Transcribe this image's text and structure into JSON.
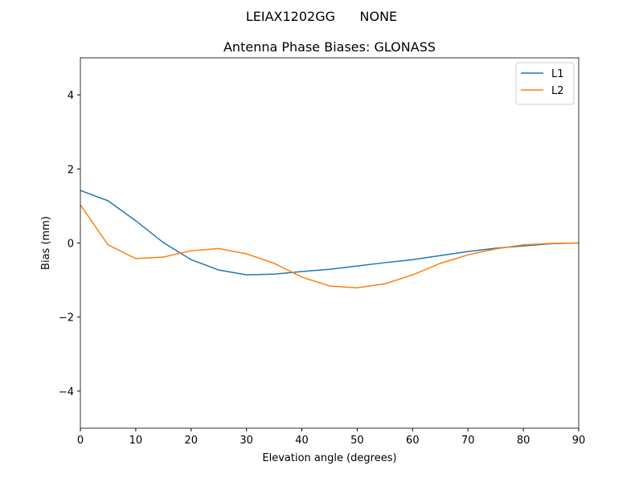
{
  "chart_data": {
    "type": "line",
    "suptitle": "LEIAX1202GG      NONE",
    "title": "Antenna Phase Biases: GLONASS",
    "xlabel": "Elevation angle (degrees)",
    "ylabel": "Bias (mm)",
    "x": [
      0,
      5,
      10,
      15,
      20,
      25,
      30,
      35,
      40,
      45,
      50,
      55,
      60,
      65,
      70,
      75,
      80,
      85,
      90
    ],
    "series": [
      {
        "name": "L1",
        "color": "#1f77b4",
        "values": [
          1.42,
          1.14,
          0.6,
          0.01,
          -0.45,
          -0.73,
          -0.86,
          -0.84,
          -0.77,
          -0.71,
          -0.62,
          -0.53,
          -0.45,
          -0.34,
          -0.23,
          -0.14,
          -0.08,
          -0.02,
          0
        ]
      },
      {
        "name": "L2",
        "color": "#ff7f0e",
        "values": [
          1.03,
          -0.05,
          -0.42,
          -0.38,
          -0.21,
          -0.15,
          -0.29,
          -0.55,
          -0.92,
          -1.16,
          -1.21,
          -1.1,
          -0.86,
          -0.55,
          -0.32,
          -0.16,
          -0.05,
          -0.01,
          0
        ]
      }
    ],
    "xlim": [
      0,
      90
    ],
    "xticks": [
      0,
      10,
      20,
      30,
      40,
      50,
      60,
      70,
      80,
      90
    ],
    "ylim": [
      -5,
      5
    ],
    "yticks": [
      {
        "value": -4,
        "label": "−4"
      },
      {
        "value": -2,
        "label": "−2"
      },
      0,
      2,
      4
    ],
    "grid": false,
    "legend": "upper right"
  }
}
